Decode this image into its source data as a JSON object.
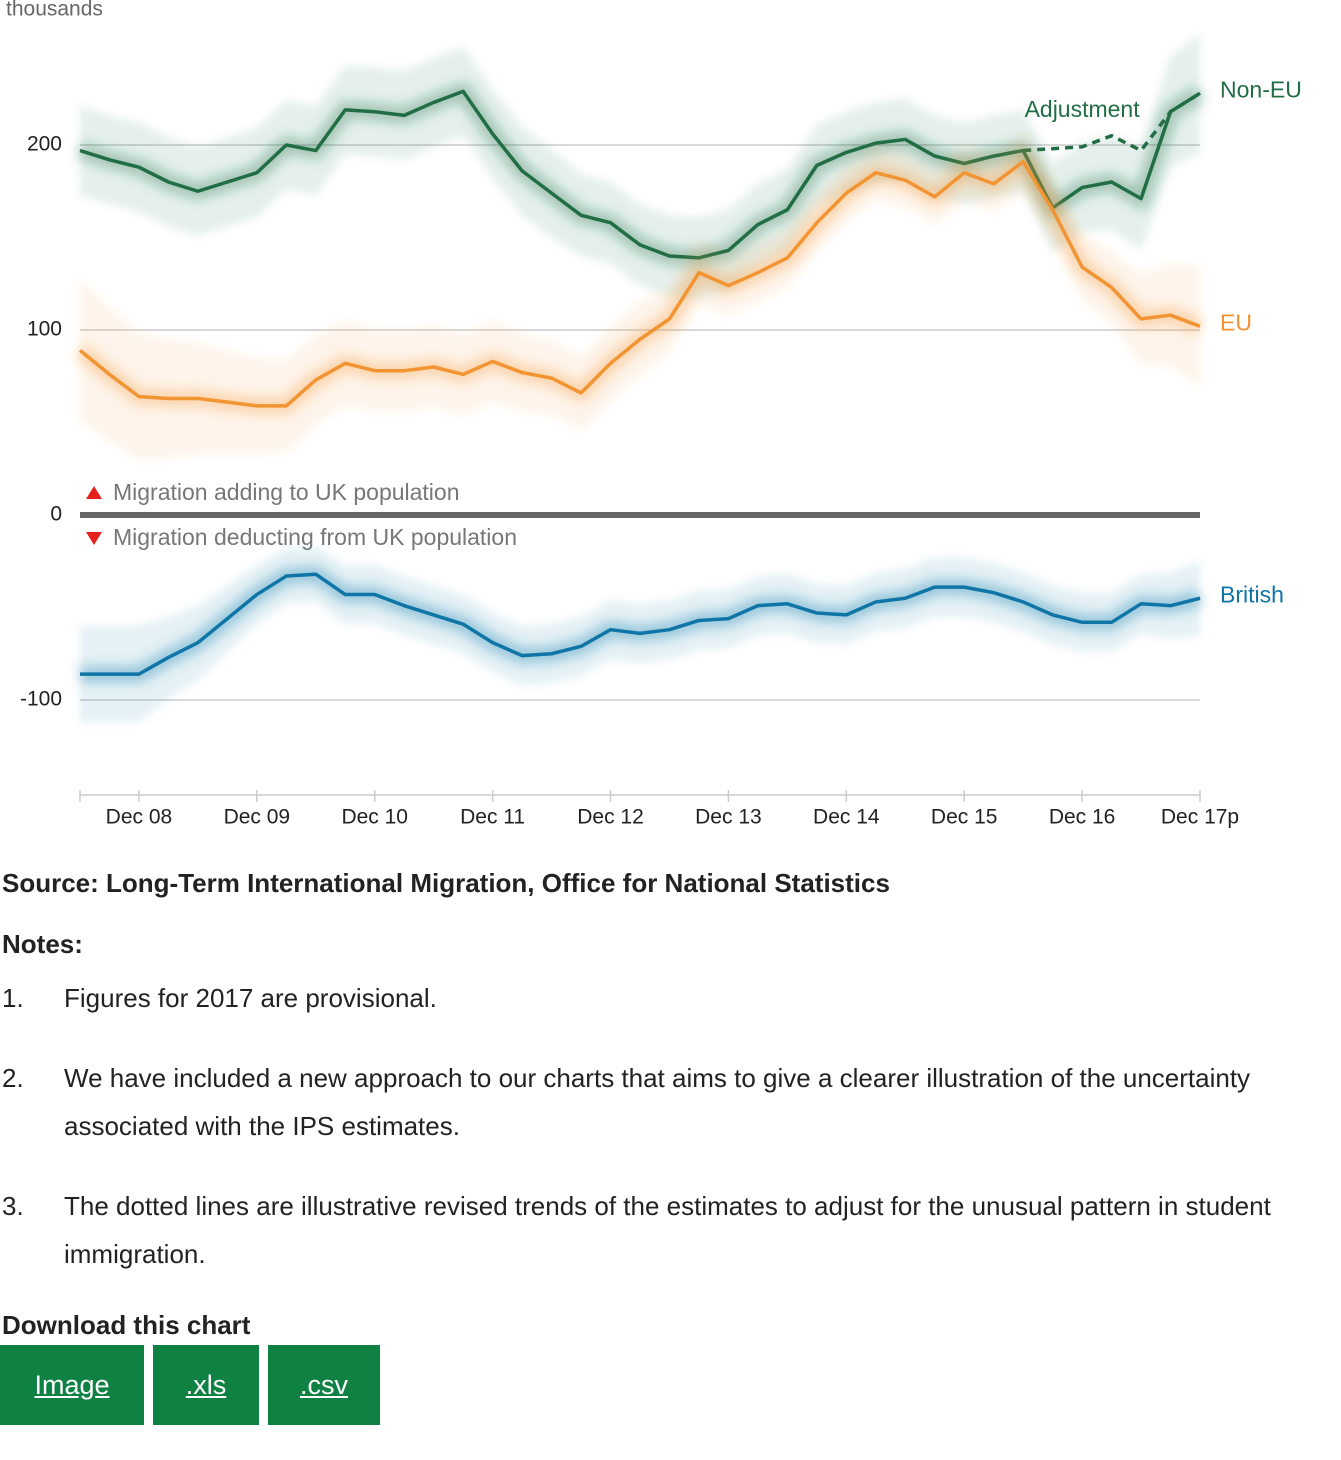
{
  "chart_data": {
    "type": "line",
    "y_label": "thousands",
    "categories": [
      null,
      null,
      "Dec 08",
      null,
      null,
      null,
      "Dec 09",
      null,
      null,
      null,
      "Dec 10",
      null,
      null,
      null,
      "Dec 11",
      null,
      null,
      null,
      "Dec 12",
      null,
      null,
      null,
      "Dec 13",
      null,
      null,
      null,
      "Dec 14",
      null,
      null,
      null,
      "Dec 15",
      null,
      null,
      null,
      "Dec 16",
      null,
      null,
      null,
      "Dec 17p"
    ],
    "series": [
      {
        "name": "Non-EU",
        "color": "#216e45",
        "values": [
          197,
          192,
          188,
          180,
          175,
          180,
          185,
          200,
          197,
          219,
          218,
          216,
          223,
          229,
          206,
          186,
          174,
          162,
          158,
          146,
          140,
          139,
          143,
          157,
          165,
          189,
          196,
          201,
          203,
          194,
          190,
          194,
          197,
          166,
          177,
          180,
          171,
          218,
          228
        ],
        "error": [
          24,
          24,
          24,
          24,
          24,
          24,
          24,
          24,
          24,
          24,
          24,
          24,
          24,
          24,
          24,
          24,
          24,
          22,
          22,
          22,
          22,
          22,
          22,
          22,
          22,
          22,
          22,
          22,
          22,
          22,
          22,
          22,
          22,
          24,
          24,
          26,
          28,
          30,
          32
        ]
      },
      {
        "name": "Adjustment",
        "color": "#216e45",
        "dashed": true,
        "values": [
          null,
          null,
          null,
          null,
          null,
          null,
          null,
          null,
          null,
          null,
          null,
          null,
          null,
          null,
          null,
          null,
          null,
          null,
          null,
          null,
          null,
          null,
          null,
          null,
          null,
          null,
          null,
          null,
          null,
          null,
          null,
          null,
          197,
          198,
          199,
          205,
          197,
          218,
          228
        ]
      },
      {
        "name": "EU",
        "color": "#f39433",
        "values": [
          89,
          76,
          64,
          63,
          63,
          61,
          59,
          59,
          73,
          82,
          78,
          78,
          80,
          76,
          83,
          77,
          74,
          66,
          82,
          95,
          106,
          131,
          124,
          131,
          139,
          158,
          174,
          185,
          181,
          172,
          185,
          179,
          191,
          165,
          134,
          123,
          106,
          108,
          102
        ],
        "error": [
          38,
          36,
          34,
          32,
          30,
          28,
          26,
          25,
          24,
          23,
          22,
          22,
          22,
          22,
          22,
          21,
          20,
          20,
          20,
          20,
          18,
          18,
          16,
          16,
          16,
          16,
          15,
          15,
          15,
          15,
          15,
          15,
          16,
          17,
          18,
          20,
          24,
          28,
          32
        ]
      },
      {
        "name": "British",
        "color": "#0f75a6",
        "values": [
          -86,
          -86,
          -86,
          -77,
          -69,
          -56,
          -43,
          -33,
          -32,
          -43,
          -43,
          -49,
          -54,
          -59,
          -69,
          -76,
          -75,
          -71,
          -62,
          -64,
          -62,
          -57,
          -56,
          -49,
          -48,
          -53,
          -54,
          -47,
          -45,
          -39,
          -39,
          -42,
          -47,
          -54,
          -58,
          -58,
          -48,
          -49,
          -45
        ],
        "error": [
          26,
          26,
          26,
          22,
          20,
          18,
          16,
          15,
          15,
          16,
          16,
          16,
          16,
          16,
          16,
          16,
          16,
          16,
          16,
          16,
          16,
          16,
          16,
          16,
          16,
          16,
          16,
          16,
          16,
          16,
          16,
          16,
          16,
          16,
          16,
          16,
          16,
          18,
          20
        ]
      }
    ],
    "ylim": [
      -150,
      250
    ],
    "yticks": [
      -100,
      0,
      100,
      200
    ],
    "grid": true,
    "annotations": [
      "Migration adding to UK population",
      "Migration deducting from UK population"
    ]
  },
  "source": "Source: Long-Term International Migration, Office for National Statistics",
  "notes_title": "Notes:",
  "notes": [
    "Figures for 2017 are provisional.",
    "We have included a new approach to our charts that aims to give a clearer illustration of the uncertainty associated with the IPS estimates.",
    "The dotted lines are illustrative revised trends of the estimates to adjust for the unusual pattern in student immigration."
  ],
  "download_title": "Download this chart",
  "download_buttons": [
    "Image",
    ".xls",
    ".csv"
  ]
}
